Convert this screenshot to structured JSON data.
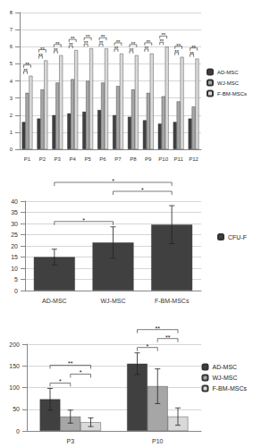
{
  "chart_data": [
    {
      "type": "bar",
      "categories": [
        "P1",
        "P2",
        "P3",
        "P4",
        "P5",
        "P6",
        "P7",
        "P8",
        "P9",
        "P10",
        "P11",
        "P12"
      ],
      "series": [
        {
          "name": "AD-MSC",
          "color": "#404040",
          "values": [
            1.6,
            1.8,
            2.0,
            2.1,
            2.2,
            2.3,
            2.0,
            1.9,
            1.7,
            1.5,
            1.6,
            1.8
          ]
        },
        {
          "name": "WJ-MSC",
          "color": "#a6a6a6",
          "values": [
            3.3,
            3.5,
            3.9,
            4.1,
            4.0,
            3.9,
            3.7,
            3.5,
            3.3,
            3.1,
            2.8,
            2.5
          ]
        },
        {
          "name": "F-BM-MSCs",
          "color": "#d9d9d9",
          "values": [
            4.3,
            5.2,
            5.5,
            5.8,
            5.9,
            5.9,
            5.6,
            5.5,
            5.6,
            6.0,
            5.4,
            5.3
          ]
        }
      ],
      "ylim": [
        0,
        8
      ],
      "yticks": [
        0,
        1,
        2,
        3,
        4,
        5,
        6,
        7,
        8
      ],
      "grid": true,
      "legend": "right",
      "annotations": [
        {
          "text": "**",
          "category": "P1",
          "series": [
            "AD-MSC",
            "WJ-MSC"
          ]
        },
        {
          "text": "**",
          "category": "P1",
          "series": [
            "AD-MSC",
            "F-BM-MSCs"
          ]
        },
        {
          "text": "**",
          "category": "P2",
          "series": [
            "AD-MSC",
            "WJ-MSC"
          ]
        },
        {
          "text": "**",
          "category": "P2",
          "series": [
            "AD-MSC",
            "F-BM-MSCs"
          ]
        },
        {
          "text": "**",
          "category": "P3",
          "series": [
            "AD-MSC",
            "WJ-MSC"
          ]
        },
        {
          "text": "**",
          "category": "P3",
          "series": [
            "AD-MSC",
            "F-BM-MSCs"
          ]
        },
        {
          "text": "**",
          "category": "P4",
          "series": [
            "AD-MSC",
            "WJ-MSC"
          ]
        },
        {
          "text": "**",
          "category": "P4",
          "series": [
            "AD-MSC",
            "F-BM-MSCs"
          ]
        },
        {
          "text": "**",
          "category": "P5",
          "series": [
            "AD-MSC",
            "WJ-MSC"
          ]
        },
        {
          "text": "**",
          "category": "P5",
          "series": [
            "AD-MSC",
            "F-BM-MSCs"
          ]
        },
        {
          "text": "**",
          "category": "P6",
          "series": [
            "AD-MSC",
            "WJ-MSC"
          ]
        },
        {
          "text": "**",
          "category": "P6",
          "series": [
            "AD-MSC",
            "F-BM-MSCs"
          ]
        },
        {
          "text": "**",
          "category": "P7",
          "series": [
            "AD-MSC",
            "WJ-MSC"
          ]
        },
        {
          "text": "**",
          "category": "P7",
          "series": [
            "AD-MSC",
            "F-BM-MSCs"
          ]
        },
        {
          "text": "**",
          "category": "P8",
          "series": [
            "AD-MSC",
            "WJ-MSC"
          ]
        },
        {
          "text": "**",
          "category": "P8",
          "series": [
            "AD-MSC",
            "F-BM-MSCs"
          ]
        },
        {
          "text": "**",
          "category": "P9",
          "series": [
            "AD-MSC",
            "WJ-MSC"
          ]
        },
        {
          "text": "**",
          "category": "P9",
          "series": [
            "AD-MSC",
            "F-BM-MSCs"
          ]
        },
        {
          "text": "**",
          "category": "P10",
          "series": [
            "AD-MSC",
            "WJ-MSC"
          ]
        },
        {
          "text": "**",
          "category": "P10",
          "series": [
            "AD-MSC",
            "F-BM-MSCs"
          ]
        },
        {
          "text": "**",
          "category": "P11",
          "series": [
            "AD-MSC",
            "WJ-MSC"
          ]
        },
        {
          "text": "**",
          "category": "P11",
          "series": [
            "AD-MSC",
            "F-BM-MSCs"
          ]
        },
        {
          "text": "**",
          "category": "P12",
          "series": [
            "AD-MSC",
            "WJ-MSC"
          ]
        },
        {
          "text": "**",
          "category": "P12",
          "series": [
            "AD-MSC",
            "F-BM-MSCs"
          ]
        }
      ]
    },
    {
      "type": "bar",
      "categories": [
        "AD-MSC",
        "WJ-MSC",
        "F-BM-MSCs"
      ],
      "series": [
        {
          "name": "CFU-F",
          "color": "#404040",
          "values": [
            15,
            21.5,
            29.5
          ],
          "errors": [
            3.5,
            7,
            8.5
          ]
        }
      ],
      "ylim": [
        0,
        40
      ],
      "yticks": [
        0,
        5,
        10,
        15,
        20,
        25,
        30,
        35,
        40
      ],
      "grid": true,
      "legend": "right",
      "annotations": [
        {
          "text": "*",
          "categories": [
            "AD-MSC",
            "WJ-MSC"
          ]
        },
        {
          "text": "*",
          "categories": [
            "WJ-MSC",
            "F-BM-MSCs"
          ]
        },
        {
          "text": "*",
          "categories": [
            "AD-MSC",
            "F-BM-MSCs"
          ]
        }
      ]
    },
    {
      "type": "bar",
      "categories": [
        "P3",
        "P10"
      ],
      "series": [
        {
          "name": "AD-MSC",
          "color": "#404040",
          "values": [
            73,
            155
          ],
          "errors": [
            25,
            25
          ]
        },
        {
          "name": "WJ-MSC",
          "color": "#a6a6a6",
          "values": [
            33,
            103
          ],
          "errors": [
            15,
            40
          ]
        },
        {
          "name": "F-BM-MSCs",
          "color": "#d9d9d9",
          "values": [
            20,
            33
          ],
          "errors": [
            10,
            20
          ]
        }
      ],
      "ylim": [
        0,
        200
      ],
      "yticks": [
        0,
        50,
        100,
        150,
        200
      ],
      "grid": true,
      "legend": "right",
      "annotations": [
        {
          "text": "*",
          "category": "P3",
          "series": [
            "AD-MSC",
            "WJ-MSC"
          ]
        },
        {
          "text": "*",
          "category": "P3",
          "series": [
            "WJ-MSC",
            "F-BM-MSCs"
          ]
        },
        {
          "text": "**",
          "category": "P3",
          "series": [
            "AD-MSC",
            "F-BM-MSCs"
          ]
        },
        {
          "text": "*",
          "category": "P10",
          "series": [
            "AD-MSC",
            "WJ-MSC"
          ]
        },
        {
          "text": "**",
          "category": "P10",
          "series": [
            "WJ-MSC",
            "F-BM-MSCs"
          ]
        },
        {
          "text": "**",
          "category": "P10",
          "series": [
            "AD-MSC",
            "F-BM-MSCs"
          ]
        }
      ]
    }
  ]
}
